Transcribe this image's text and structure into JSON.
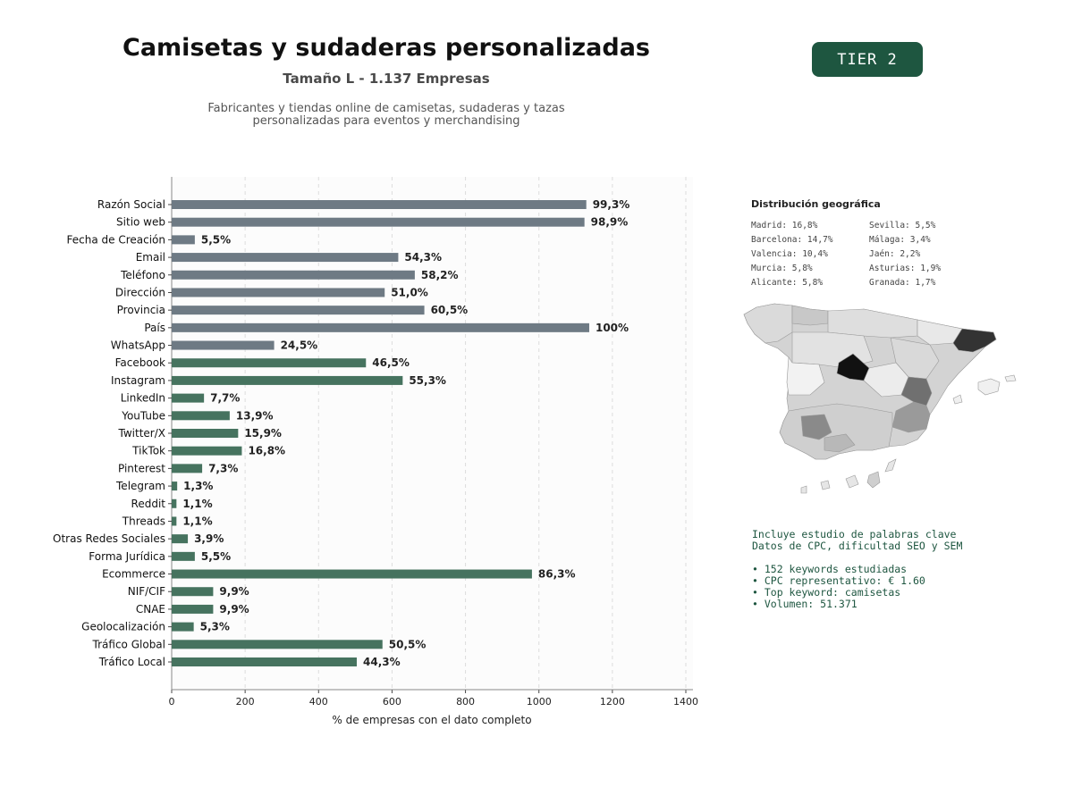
{
  "header": {
    "title": "Camisetas y sudaderas personalizadas",
    "subtitle": "Tamaño L - 1.137 Empresas",
    "description_lines": [
      "Fabricantes y tiendas online de camisetas, sudaderas y tazas",
      "personalizadas para eventos y merchandising"
    ],
    "tier_badge": "TIER 2"
  },
  "colors": {
    "gray_bar": "#6e7a84",
    "green_bar": "#46735f",
    "badge": "#1e5640",
    "text_dark": "#222222"
  },
  "chart_data": {
    "type": "bar",
    "orientation": "horizontal",
    "categories": [
      "Razón Social",
      "Sitio web",
      "Fecha de Creación",
      "Email",
      "Teléfono",
      "Dirección",
      "Provincia",
      "País",
      "WhatsApp",
      "Facebook",
      "Instagram",
      "LinkedIn",
      "YouTube",
      "Twitter/X",
      "TikTok",
      "Pinterest",
      "Telegram",
      "Reddit",
      "Threads",
      "Otras Redes Sociales",
      "Forma Jurídica",
      "Ecommerce",
      "NIF/CIF",
      "CNAE",
      "Geolocalización",
      "Tráfico Global",
      "Tráfico Local"
    ],
    "values": [
      1129,
      1124,
      63,
      617,
      662,
      580,
      688,
      1137,
      279,
      529,
      629,
      88,
      158,
      181,
      191,
      83,
      15,
      13,
      13,
      44,
      63,
      981,
      113,
      113,
      60,
      574,
      504
    ],
    "labels": [
      "99,3%",
      "98,9%",
      "5,5%",
      "54,3%",
      "58,2%",
      "51,0%",
      "60,5%",
      "100%",
      "24,5%",
      "46,5%",
      "55,3%",
      "7,7%",
      "13,9%",
      "15,9%",
      "16,8%",
      "7,3%",
      "1,3%",
      "1,1%",
      "1,1%",
      "3,9%",
      "5,5%",
      "86,3%",
      "9,9%",
      "9,9%",
      "5,3%",
      "50,5%",
      "44,3%"
    ],
    "color_groups": [
      "gray",
      "gray",
      "gray",
      "gray",
      "gray",
      "gray",
      "gray",
      "gray",
      "gray",
      "green",
      "green",
      "green",
      "green",
      "green",
      "green",
      "green",
      "green",
      "green",
      "green",
      "green",
      "green",
      "green",
      "green",
      "green",
      "green",
      "green",
      "green"
    ],
    "xlabel": "% de empresas con el dato completo",
    "xlim": [
      0,
      1420
    ],
    "xticks": [
      0,
      200,
      400,
      600,
      800,
      1000,
      1200,
      1400
    ],
    "grid": "vertical dashed"
  },
  "geo": {
    "title": "Distribución geográfica",
    "left_column": [
      "Madrid: 16,8%",
      "Barcelona: 14,7%",
      "Valencia: 10,4%",
      "Murcia: 5,8%",
      "Alicante: 5,8%"
    ],
    "right_column": [
      "Sevilla: 5,5%",
      "Málaga: 3,4%",
      "Jaén: 2,2%",
      "Asturias: 1,9%",
      "Granada: 1,7%"
    ]
  },
  "keywords": {
    "lines": [
      "Incluye estudio de palabras clave",
      "Datos de CPC, dificultad SEO y SEM"
    ],
    "bullets": [
      "• 152 keywords estudiadas",
      "• CPC representativo: € 1.60",
      "• Top keyword: camisetas",
      "• Volumen: 51.371"
    ]
  }
}
